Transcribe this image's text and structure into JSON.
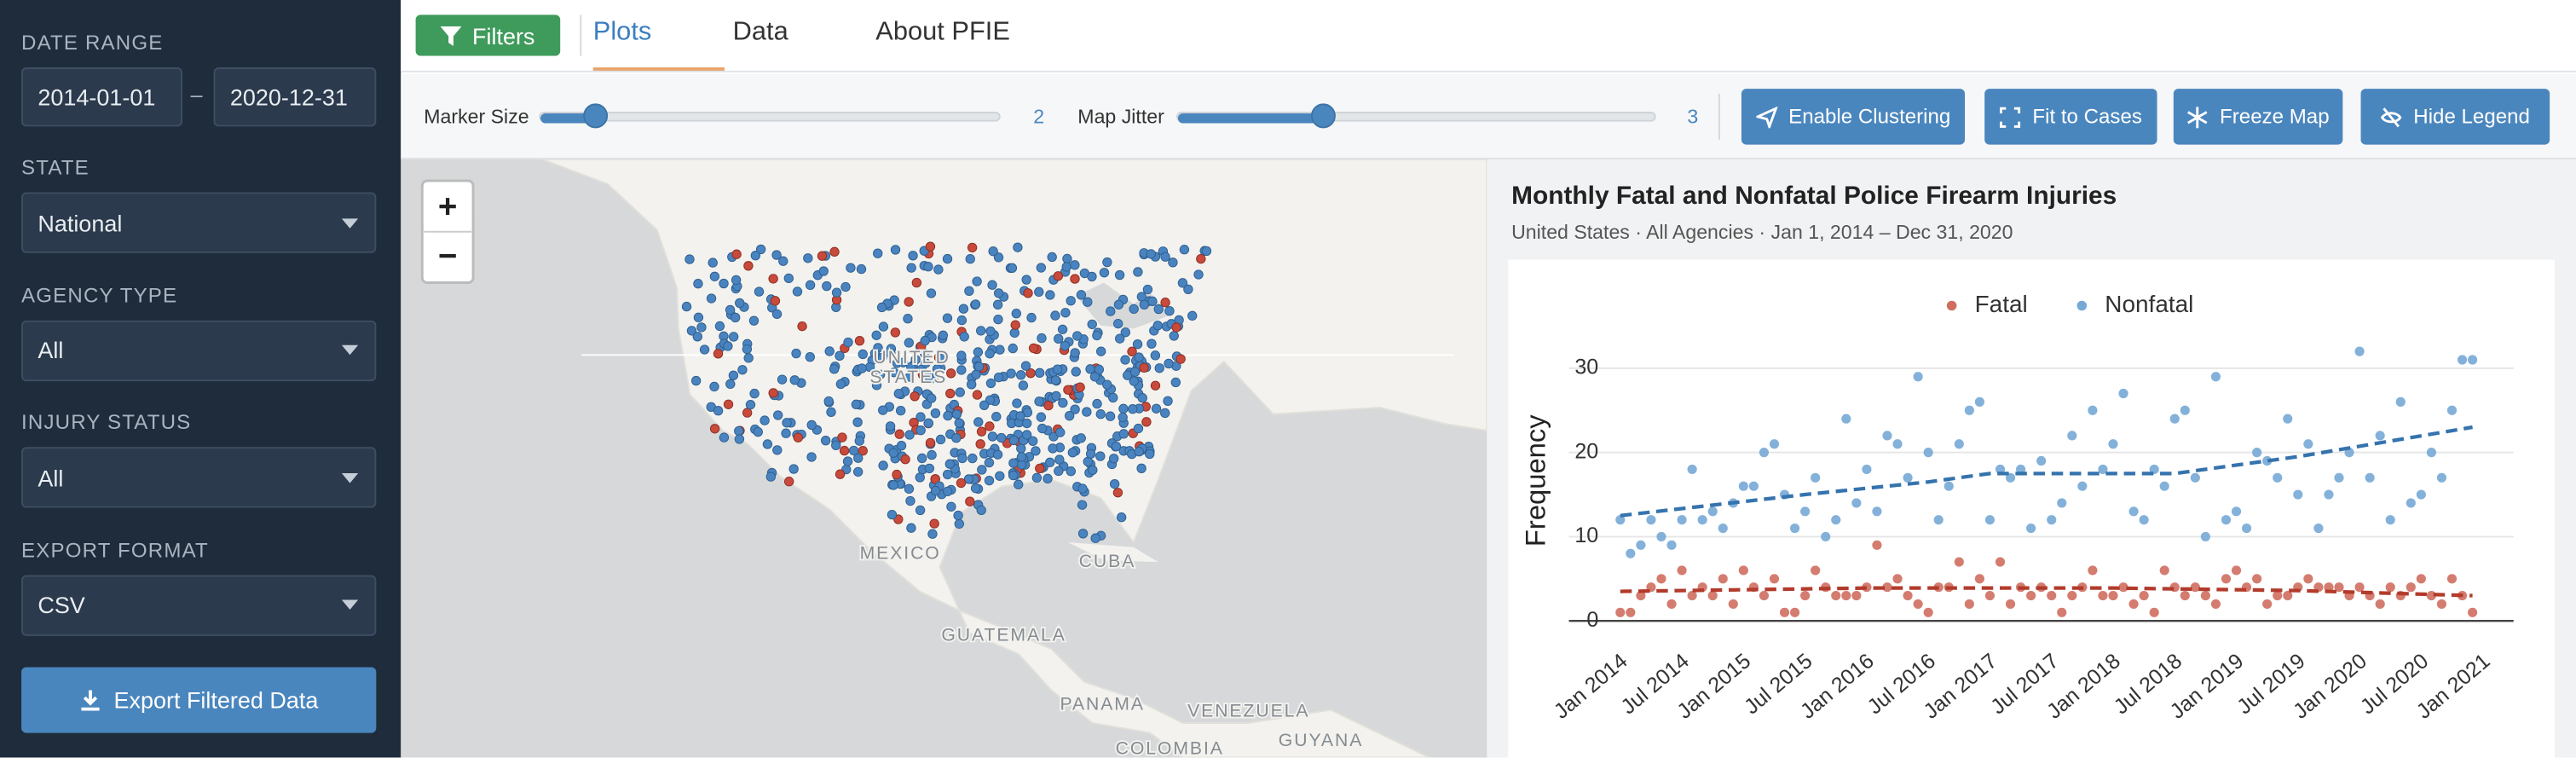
{
  "sidebar": {
    "date_range": {
      "label": "DATE RANGE",
      "start": "2014-01-01",
      "separator": "–",
      "end": "2020-12-31"
    },
    "fields": [
      {
        "label": "STATE",
        "value": "National"
      },
      {
        "label": "AGENCY TYPE",
        "value": "All"
      },
      {
        "label": "INJURY STATUS",
        "value": "All"
      },
      {
        "label": "EXPORT FORMAT",
        "value": "CSV"
      }
    ],
    "export_button": "Export Filtered Data"
  },
  "toolbar": {
    "filters_button": "Filters",
    "tabs": [
      "Plots",
      "Data",
      "About PFIE"
    ]
  },
  "controls": {
    "marker_size": {
      "label": "Marker Size",
      "value": 2
    },
    "map_jitter": {
      "label": "Map Jitter",
      "value": 3
    },
    "buttons": [
      "Enable Clustering",
      "Fit to Cases",
      "Freeze Map",
      "Hide Legend"
    ]
  },
  "map": {
    "zoom_in": "+",
    "zoom_out": "−",
    "labels": [
      "UNITED",
      "STATES",
      "MEXICO",
      "CUBA",
      "GUATEMALA",
      "PANAMA",
      "VENEZUELA",
      "COLOMBIA",
      "GUYANA"
    ]
  },
  "chart_data": {
    "type": "scatter",
    "title": "Monthly Fatal and Nonfatal Police Firearm Injuries",
    "subtitle": "United States · All Agencies · Jan 1, 2014 – Dec 31, 2020",
    "y_label": "Frequency",
    "legend": "top",
    "grid": true,
    "xlim": [
      "2013-08",
      "2021-04"
    ],
    "xticks": [
      {
        "value": "2014-01",
        "label": "Jan 2014"
      },
      {
        "value": "2014-07",
        "label": "Jul 2014"
      },
      {
        "value": "2015-01",
        "label": "Jan 2015"
      },
      {
        "value": "2015-07",
        "label": "Jul 2015"
      },
      {
        "value": "2016-01",
        "label": "Jan 2016"
      },
      {
        "value": "2016-07",
        "label": "Jul 2016"
      },
      {
        "value": "2017-01",
        "label": "Jan 2017"
      },
      {
        "value": "2017-07",
        "label": "Jul 2017"
      },
      {
        "value": "2018-01",
        "label": "Jan 2018"
      },
      {
        "value": "2018-07",
        "label": "Jul 2018"
      },
      {
        "value": "2019-01",
        "label": "Jan 2019"
      },
      {
        "value": "2019-07",
        "label": "Jul 2019"
      },
      {
        "value": "2020-01",
        "label": "Jan 2020"
      },
      {
        "value": "2020-07",
        "label": "Jul 2020"
      },
      {
        "value": "2021-01",
        "label": "Jan 2021"
      }
    ],
    "ylim": [
      -1.4,
      34.7
    ],
    "yticks": [
      0,
      10,
      20,
      30
    ],
    "x": [
      "2014-01",
      "2014-02",
      "2014-03",
      "2014-04",
      "2014-05",
      "2014-06",
      "2014-07",
      "2014-08",
      "2014-09",
      "2014-10",
      "2014-11",
      "2014-12",
      "2015-01",
      "2015-02",
      "2015-03",
      "2015-04",
      "2015-05",
      "2015-06",
      "2015-07",
      "2015-08",
      "2015-09",
      "2015-10",
      "2015-11",
      "2015-12",
      "2016-01",
      "2016-02",
      "2016-03",
      "2016-04",
      "2016-05",
      "2016-06",
      "2016-07",
      "2016-08",
      "2016-09",
      "2016-10",
      "2016-11",
      "2016-12",
      "2017-01",
      "2017-02",
      "2017-03",
      "2017-04",
      "2017-05",
      "2017-06",
      "2017-07",
      "2017-08",
      "2017-09",
      "2017-10",
      "2017-11",
      "2017-12",
      "2018-01",
      "2018-02",
      "2018-03",
      "2018-04",
      "2018-05",
      "2018-06",
      "2018-07",
      "2018-08",
      "2018-09",
      "2018-10",
      "2018-11",
      "2018-12",
      "2019-01",
      "2019-02",
      "2019-03",
      "2019-04",
      "2019-05",
      "2019-06",
      "2019-07",
      "2019-08",
      "2019-09",
      "2019-10",
      "2019-11",
      "2019-12",
      "2020-01",
      "2020-02",
      "2020-03",
      "2020-04",
      "2020-05",
      "2020-06",
      "2020-07",
      "2020-08",
      "2020-09",
      "2020-10",
      "2020-11",
      "2020-12"
    ],
    "series": [
      {
        "name": "Fatal",
        "color": "#cf6e5f",
        "values": [
          1,
          1,
          3,
          4,
          5,
          2,
          6,
          3,
          4,
          3,
          5,
          2,
          6,
          4,
          3,
          5,
          1,
          1,
          3,
          6,
          4,
          3,
          3,
          3,
          4,
          9,
          4,
          5,
          3,
          2,
          1,
          4,
          4,
          7,
          2,
          5,
          3,
          7,
          2,
          4,
          3,
          4,
          3,
          1,
          3,
          4,
          6,
          3,
          3,
          4,
          2,
          3,
          1,
          6,
          4,
          3,
          4,
          3,
          2,
          5,
          6,
          4,
          5,
          2,
          3,
          3,
          4,
          5,
          4,
          4,
          4,
          3,
          4,
          3,
          2,
          4,
          3,
          4,
          5,
          3,
          2,
          5,
          3,
          1
        ]
      },
      {
        "name": "Nonfatal",
        "color": "#76a9d6",
        "values": [
          12,
          8,
          9,
          12,
          10,
          9,
          12,
          18,
          12,
          13,
          11,
          14,
          16,
          16,
          20,
          21,
          15,
          11,
          13,
          17,
          10,
          12,
          24,
          14,
          18,
          13,
          22,
          21,
          17,
          29,
          20,
          12,
          16,
          21,
          25,
          26,
          12,
          18,
          17,
          18,
          11,
          19,
          12,
          14,
          22,
          16,
          25,
          18,
          21,
          27,
          13,
          12,
          18,
          16,
          24,
          25,
          17,
          10,
          29,
          12,
          13,
          11,
          20,
          19,
          17,
          24,
          15,
          21,
          11,
          15,
          17,
          20,
          32,
          17,
          22,
          12,
          26,
          14,
          15,
          20,
          17,
          25,
          31,
          31
        ]
      }
    ],
    "trends": [
      {
        "color": "#b23b2c",
        "x": [
          "2014-01",
          "2016-01",
          "2018-01",
          "2019-07",
          "2020-12"
        ],
        "values": [
          3.5,
          3.9,
          3.9,
          3.6,
          3
        ]
      },
      {
        "color": "#3573ad",
        "x": [
          "2014-01",
          "2015-07",
          "2016-07",
          "2017-01",
          "2018-07",
          "2019-07",
          "2020-12"
        ],
        "values": [
          12.5,
          15,
          16.5,
          17.5,
          17.5,
          19.5,
          23
        ]
      }
    ]
  }
}
